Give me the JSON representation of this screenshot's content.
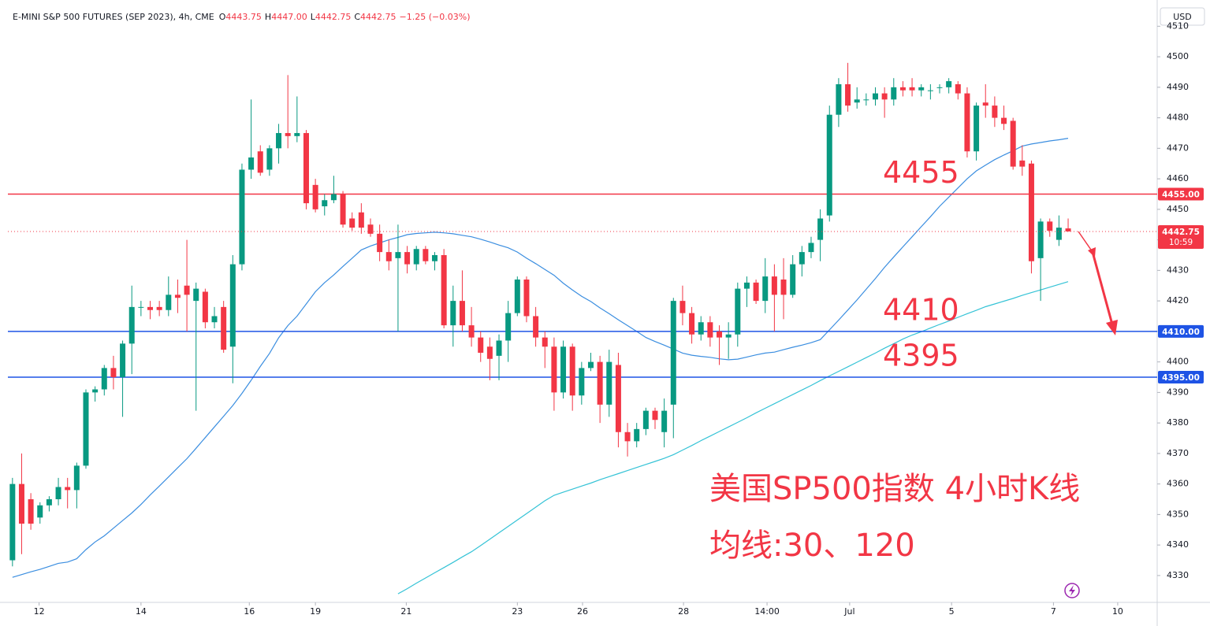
{
  "chart_data": {
    "type": "candlestick",
    "title": "E-MINI S&P 500 FUTURES (SEP 2023), 4h, CME",
    "ohlc_header": [
      {
        "label": "O",
        "value": "4443.75"
      },
      {
        "label": "H",
        "value": "4447.00"
      },
      {
        "label": "L",
        "value": "4442.75"
      },
      {
        "label": "C",
        "value": "4442.75"
      }
    ],
    "change": "−1.25 (−0.03%)",
    "currency": "USD",
    "up_color": "#089981",
    "down_color": "#f23645",
    "open": [
      4335,
      4360,
      4355,
      4349,
      4353,
      4355,
      4359,
      4358,
      4366,
      4390,
      4391,
      4398,
      4395,
      4406,
      4418,
      4418,
      4418,
      4417,
      4422,
      4425,
      4420,
      4423,
      4413,
      4418,
      4405,
      4432,
      4463,
      4469,
      4463,
      4470,
      4475,
      4474,
      4475,
      4458,
      4451,
      4453,
      4455,
      4447,
      4449,
      4445,
      4442,
      4436,
      4434,
      4436,
      4432,
      4437,
      4433,
      4435,
      4412,
      4420,
      4412,
      4408,
      4405,
      4402,
      4407,
      4416,
      4427,
      4415,
      4408,
      4405,
      4390,
      4405,
      4389,
      4398,
      4400,
      4386,
      4399,
      4377,
      4374,
      4378,
      4384,
      4377,
      4386,
      4420,
      4416,
      4409,
      4413,
      4410,
      4408,
      4409,
      4424,
      4426,
      4420,
      4428,
      4427,
      4422,
      4432,
      4436,
      4440,
      4448,
      4481,
      4491,
      4485,
      4486,
      4486,
      4488,
      4486,
      4490,
      4490,
      4489,
      4489,
      4490,
      4490,
      4491,
      4488,
      4469,
      4485,
      4484,
      4480,
      4479,
      4466,
      4465,
      4434,
      4446,
      4440,
      4443.75
    ],
    "high": [
      4362,
      4370,
      4357,
      4354,
      4356,
      4362,
      4362,
      4367,
      4391,
      4392,
      4399,
      4402,
      4407,
      4425,
      4420,
      4420,
      4420,
      4428,
      4427,
      4440,
      4426,
      4424,
      4418,
      4420,
      4435,
      4465,
      4486,
      4471,
      4471,
      4478,
      4494,
      4487,
      4476,
      4460,
      4455,
      4461,
      4456,
      4449,
      4452,
      4447,
      4445,
      4440,
      4445,
      4438,
      4438,
      4438,
      4436,
      4437,
      4425,
      4430,
      4418,
      4410,
      4408,
      4409,
      4420,
      4428,
      4428,
      4418,
      4410,
      4408,
      4407,
      4406,
      4400,
      4403,
      4402,
      4404,
      4403,
      4380,
      4380,
      4385,
      4385,
      4388,
      4421,
      4425,
      4418,
      4415,
      4415,
      4412,
      4413,
      4426,
      4428,
      4427,
      4434,
      4432,
      4434,
      4435,
      4438,
      4441,
      4450,
      4484,
      4493,
      4498,
      4490,
      4488,
      4490,
      4490,
      4493,
      4492,
      4493,
      4491,
      4491,
      4491,
      4493,
      4492,
      4490,
      4485,
      4491,
      4487,
      4484,
      4480,
      4471,
      4466,
      4447,
      4447,
      4448,
      4447
    ],
    "low": [
      4333,
      4337,
      4345,
      4347,
      4351,
      4353,
      4352,
      4352,
      4365,
      4387,
      4389,
      4391,
      4382,
      4396,
      4415,
      4414,
      4415,
      4415,
      4416,
      4410,
      4384,
      4411,
      4411,
      4403,
      4393,
      4430,
      4460,
      4461,
      4461,
      4465,
      4470,
      4472,
      4450,
      4449,
      4448,
      4452,
      4444,
      4443,
      4442,
      4441,
      4433,
      4430,
      4410,
      4429,
      4430,
      4432,
      4430,
      4411,
      4405,
      4410,
      4405,
      4400,
      4394,
      4394,
      4400,
      4415,
      4413,
      4405,
      4398,
      4384,
      4388,
      4384,
      4386,
      4397,
      4380,
      4382,
      4372,
      4369,
      4372,
      4376,
      4378,
      4372,
      4375,
      4412,
      4406,
      4407,
      4405,
      4399,
      4401,
      4405,
      4418,
      4419,
      4416,
      4410,
      4414,
      4421,
      4428,
      4434,
      4433,
      4446,
      4477,
      4482,
      4483,
      4484,
      4484,
      4480,
      4484,
      4487,
      4487,
      4487,
      4486,
      4488,
      4488,
      4486,
      4467,
      4466,
      4480,
      4477,
      4476,
      4463,
      4461,
      4429,
      4420,
      4441,
      4438,
      4442.75
    ],
    "close": [
      4360,
      4347,
      4347,
      4353,
      4355,
      4359,
      4358,
      4366,
      4390,
      4391,
      4398,
      4395,
      4406,
      4418,
      4418,
      4417,
      4417,
      4422,
      4421,
      4422,
      4424,
      4413,
      4415,
      4404,
      4432,
      4463,
      4467,
      4462,
      4470,
      4475,
      4474,
      4475,
      4452,
      4450,
      4453,
      4455,
      4445,
      4444,
      4444,
      4442,
      4436,
      4433,
      4436,
      4432,
      4437,
      4433,
      4435,
      4412,
      4420,
      4412,
      4408,
      4403,
      4401,
      4407,
      4416,
      4427,
      4415,
      4408,
      4405,
      4390,
      4405,
      4389,
      4398,
      4400,
      4386,
      4400,
      4377,
      4374,
      4378,
      4384,
      4381,
      4384,
      4420,
      4416,
      4409,
      4413,
      4408,
      4408,
      4409,
      4424,
      4426,
      4420,
      4428,
      4422,
      4422,
      4432,
      4436,
      4439,
      4447,
      4481,
      4491,
      4484,
      4486,
      4486,
      4488,
      4486,
      4490,
      4489,
      4489,
      4490,
      4489,
      4490,
      4492,
      4488,
      4469,
      4484,
      4484,
      4480,
      4478,
      4464,
      4464,
      4433,
      4446,
      4443,
      4444,
      4442.75
    ],
    "series": [
      {
        "color": "#3b8ee0",
        "values": [
          4329.4,
          4330.3,
          4331.2,
          4332,
          4333,
          4334,
          4334.4,
          4335.5,
          4338.5,
          4341,
          4343,
          4345.5,
          4348,
          4350.5,
          4353.3,
          4356.4,
          4359.3,
          4362.3,
          4365.3,
          4368.3,
          4371.7,
          4375.2,
          4378.7,
          4382.2,
          4385.7,
          4389.7,
          4394,
          4398.5,
          4402.8,
          4407.9,
          4411.9,
          4415,
          4419,
          4423,
          4426,
          4428.5,
          4431.3,
          4434,
          4436.7,
          4438,
          4439,
          4440,
          4440.8,
          4441.7,
          4442.1,
          4442.3,
          4442.5,
          4442.3,
          4442,
          4441.5,
          4441,
          4440.2,
          4439.3,
          4438.3,
          4437.4,
          4436,
          4434,
          4432.2,
          4430.3,
          4428.4,
          4425.8,
          4423.6,
          4421.5,
          4419.8,
          4417.7,
          4415.8,
          4413.8,
          4411.9,
          4410,
          4408,
          4406.7,
          4405.5,
          4404.2,
          4402.9,
          4402.2,
          4401.8,
          4401.5,
          4401,
          4400.7,
          4400.9,
          4401.6,
          4402.3,
          4402.9,
          4403.2,
          4404,
          4404.8,
          4405.5,
          4406.3,
          4407.3,
          4410.5,
          4413.7,
          4417,
          4420.3,
          4423.8,
          4427.3,
          4431,
          4434.4,
          4437.7,
          4441,
          4444.3,
          4447.6,
          4451,
          4454,
          4457,
          4460,
          4462.6,
          4464.5,
          4466.3,
          4467.8,
          4469.2,
          4470.7,
          4471.4,
          4471.9,
          4472.4,
          4472.8,
          4473.3
        ]
      },
      {
        "color": "#35c3d6",
        "values": [
          null,
          null,
          null,
          null,
          null,
          null,
          null,
          null,
          null,
          null,
          null,
          null,
          null,
          null,
          null,
          null,
          null,
          null,
          null,
          null,
          null,
          null,
          null,
          null,
          null,
          null,
          null,
          null,
          null,
          null,
          null,
          null,
          null,
          null,
          null,
          null,
          null,
          null,
          null,
          null,
          null,
          null,
          4324,
          4325.7,
          4327.5,
          4329.2,
          4330.9,
          4332.6,
          4334.3,
          4336.1,
          4337.8,
          4339.8,
          4341.9,
          4344,
          4346.1,
          4348.2,
          4350.3,
          4352.4,
          4354.5,
          4356.3,
          4357.3,
          4358.3,
          4359.3,
          4360.3,
          4361.4,
          4362.4,
          4363.4,
          4364.4,
          4365.4,
          4366.4,
          4367.4,
          4368.4,
          4369.6,
          4371.1,
          4372.6,
          4374.2,
          4375.7,
          4377.2,
          4378.7,
          4380.2,
          4381.7,
          4383.3,
          4384.8,
          4386.3,
          4387.8,
          4389.3,
          4390.8,
          4392.3,
          4393.9,
          4395.4,
          4396.9,
          4398.4,
          4399.9,
          4401.4,
          4402.9,
          4404.5,
          4406,
          4407.5,
          4408.8,
          4409.9,
          4411.1,
          4412.3,
          4413.4,
          4414.6,
          4415.8,
          4416.9,
          4418.1,
          4419,
          4419.9,
          4420.8,
          4421.8,
          4422.7,
          4423.6,
          4424.5,
          4425.4,
          4426.3
        ]
      }
    ],
    "levels": [
      {
        "value": 4455,
        "label": "4455.00",
        "annotation": "4455",
        "color": "#f23645"
      },
      {
        "value": 4410,
        "label": "4410.00",
        "annotation": "4410",
        "color": "#1e53e5"
      },
      {
        "value": 4395,
        "label": "4395.00",
        "annotation": "4395",
        "color": "#1e53e5"
      }
    ],
    "last_price_label": "4442.75",
    "countdown": "10:59",
    "notes": [
      "美国SP500指数 4小时K线",
      "均线:30、120"
    ],
    "xlim": [
      -0.5,
      124.7
    ],
    "xticks": [
      {
        "value": 2.9,
        "label": "12"
      },
      {
        "value": 14,
        "label": "14"
      },
      {
        "value": 25.8,
        "label": "16"
      },
      {
        "value": 33,
        "label": "19"
      },
      {
        "value": 42.9,
        "label": "21"
      },
      {
        "value": 55,
        "label": "23"
      },
      {
        "value": 62.1,
        "label": "26"
      },
      {
        "value": 73.1,
        "label": "28"
      },
      {
        "value": 82.2,
        "label": "14:00"
      },
      {
        "value": 91.2,
        "label": "Jul"
      },
      {
        "value": 102.3,
        "label": "5"
      },
      {
        "value": 113.4,
        "label": "7"
      },
      {
        "value": 120.4,
        "label": "10"
      }
    ],
    "ylim": [
      4321.2,
      4518.6
    ],
    "yticks": [
      4330,
      4340,
      4350,
      4360,
      4370,
      4380,
      4390,
      4400,
      4410,
      4420,
      4430,
      4440,
      4450,
      4460,
      4470,
      4480,
      4490,
      4500,
      4510
    ],
    "grid": false
  }
}
